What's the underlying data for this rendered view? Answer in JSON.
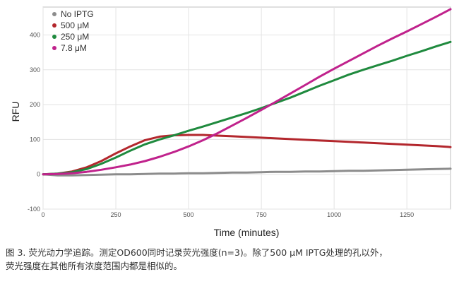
{
  "chart_data": {
    "type": "line",
    "title": "",
    "xlabel": "Time (minutes)",
    "ylabel": "RFU",
    "xlim": [
      0,
      1400
    ],
    "ylim": [
      -100,
      480
    ],
    "xticks": [
      0,
      250,
      500,
      750,
      1000,
      1250
    ],
    "yticks": [
      -100,
      0,
      100,
      200,
      300,
      400
    ],
    "grid": true,
    "legend_position": "top-left",
    "x": [
      0,
      50,
      100,
      150,
      200,
      250,
      300,
      350,
      400,
      450,
      500,
      550,
      600,
      650,
      700,
      750,
      800,
      850,
      900,
      950,
      1000,
      1050,
      1100,
      1150,
      1200,
      1250,
      1300,
      1350,
      1400
    ],
    "series": [
      {
        "name": "No IPTG",
        "color": "#8c8c8c",
        "values": [
          0,
          -3,
          -3,
          -2,
          -1,
          0,
          0,
          1,
          2,
          2,
          3,
          3,
          4,
          5,
          5,
          6,
          7,
          7,
          8,
          8,
          9,
          10,
          10,
          11,
          12,
          13,
          14,
          15,
          16
        ]
      },
      {
        "name": "500 μM",
        "color": "#b3272d",
        "values": [
          0,
          2,
          8,
          20,
          38,
          60,
          80,
          98,
          108,
          112,
          113,
          113,
          111,
          109,
          107,
          105,
          103,
          101,
          99,
          97,
          95,
          93,
          91,
          89,
          87,
          85,
          83,
          81,
          78
        ]
      },
      {
        "name": "250 μM",
        "color": "#1f8a3e",
        "values": [
          0,
          2,
          6,
          15,
          30,
          48,
          68,
          86,
          100,
          112,
          125,
          137,
          150,
          163,
          176,
          190,
          205,
          220,
          237,
          254,
          270,
          286,
          300,
          313,
          326,
          340,
          353,
          367,
          380
        ]
      },
      {
        "name": "7.8 μM",
        "color": "#c0228c",
        "values": [
          0,
          1,
          3,
          7,
          13,
          20,
          28,
          38,
          50,
          64,
          80,
          98,
          118,
          140,
          162,
          185,
          208,
          232,
          256,
          280,
          303,
          325,
          347,
          369,
          390,
          410,
          431,
          452,
          474
        ]
      }
    ]
  },
  "caption": {
    "line1": "图 3. 荧光动力学追踪。测定OD600同时记录荧光强度(n=3)。除了500 μM IPTG处理的孔以外，",
    "line2": "荧光强度在其他所有浓度范围内都是相似的。"
  }
}
